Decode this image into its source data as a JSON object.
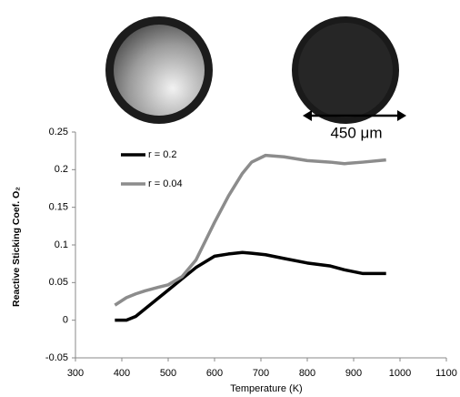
{
  "chart_data": {
    "type": "line",
    "x_label": "Temperature (K)",
    "y_label": "Reactive Sticking Coef. O₂",
    "annotation": "450 μm",
    "x": [
      385,
      410,
      430,
      450,
      480,
      500,
      530,
      560,
      600,
      630,
      660,
      680,
      710,
      750,
      800,
      850,
      880,
      920,
      970
    ],
    "series": [
      {
        "name": "r = 0.2",
        "color": "#000000",
        "values": [
          0,
          0,
          0.005,
          0.015,
          0.03,
          0.04,
          0.055,
          0.07,
          0.085,
          0.088,
          0.09,
          0.089,
          0.087,
          0.082,
          0.076,
          0.072,
          0.067,
          0.062,
          0.062
        ]
      },
      {
        "name": "r = 0.04",
        "color": "#8c8c8c",
        "values": [
          0.02,
          0.03,
          0.035,
          0.039,
          0.044,
          0.047,
          0.058,
          0.08,
          0.13,
          0.165,
          0.195,
          0.21,
          0.219,
          0.217,
          0.212,
          0.21,
          0.208,
          0.21,
          0.213
        ]
      }
    ],
    "xlim": [
      300,
      1100
    ],
    "xticks": [
      300,
      400,
      500,
      600,
      700,
      800,
      900,
      1000,
      1100
    ],
    "ylim": [
      -0.05,
      0.25
    ],
    "yticks": [
      -0.05,
      0,
      0.05,
      0.1,
      0.15,
      0.2,
      0.25
    ],
    "grid": false,
    "legend": "upper left"
  }
}
